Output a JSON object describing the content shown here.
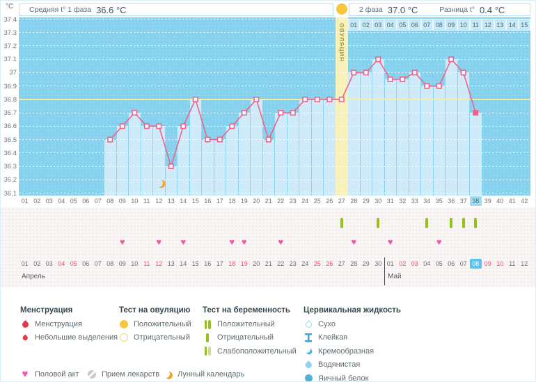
{
  "header": {
    "unit_label": "°C",
    "phase1_label": "Средняя t° 1 фаза",
    "phase1_value": "36.6 °C",
    "phase2_label": "2 фаза",
    "phase2_value": "37.0 °C",
    "diff_label": "Разница t°",
    "diff_value": "0.4 °C"
  },
  "chart_data": {
    "type": "line",
    "ylabel": "°C",
    "ylim": [
      36.1,
      37.4
    ],
    "yticks": [
      "37.4",
      "37.3",
      "37.2",
      "37.1",
      "37",
      "36.9",
      "36.8",
      "36.7",
      "36.6",
      "36.5",
      "36.4",
      "36.3",
      "36.2",
      "36.1"
    ],
    "grid": true,
    "total_days": 42,
    "days": [
      8,
      9,
      10,
      11,
      12,
      13,
      14,
      15,
      16,
      17,
      18,
      19,
      20,
      21,
      22,
      23,
      24,
      25,
      26,
      27,
      28,
      29,
      30,
      31,
      32,
      33,
      34,
      35,
      36,
      37,
      38
    ],
    "temperatures": [
      36.5,
      36.6,
      36.7,
      36.6,
      36.6,
      36.3,
      36.6,
      36.8,
      36.5,
      36.5,
      36.6,
      36.7,
      36.8,
      36.5,
      36.7,
      36.7,
      36.8,
      36.8,
      36.8,
      36.8,
      37.0,
      37.0,
      37.1,
      36.95,
      36.95,
      37.0,
      36.9,
      36.9,
      37.1,
      37.0,
      36.7
    ],
    "coverline": 36.8,
    "ovulation_day": 27,
    "ovulation_label": "ОВУЛЯЦИЯ",
    "phase2_days": [
      "01",
      "02",
      "03",
      "04",
      "05",
      "06",
      "07",
      "08",
      "09",
      "10",
      "11",
      "12",
      "13",
      "14",
      "15"
    ],
    "current_cycle_day": 38,
    "lunar_day": 12
  },
  "events": {
    "intercourse_days": [
      9,
      12,
      14,
      18,
      19,
      22,
      28,
      31,
      35
    ],
    "pregnancy_test_days": [
      27,
      30,
      34,
      36,
      37,
      38
    ]
  },
  "calendar": {
    "cycle_days": [
      "01",
      "02",
      "03",
      "04",
      "05",
      "06",
      "07",
      "08",
      "09",
      "10",
      "11",
      "12",
      "13",
      "14",
      "15",
      "16",
      "17",
      "18",
      "19",
      "20",
      "21",
      "22",
      "23",
      "24",
      "25",
      "26",
      "27",
      "28",
      "29",
      "30",
      "31",
      "32",
      "33",
      "34",
      "35",
      "36",
      "37",
      "38",
      "39",
      "40",
      "41",
      "42"
    ],
    "april_label": "Апрель",
    "may_label": "Май",
    "april_days": [
      "01",
      "02",
      "03",
      "04",
      "05",
      "06",
      "07",
      "08",
      "09",
      "10",
      "11",
      "12",
      "13",
      "14",
      "15",
      "16",
      "17",
      "18",
      "19",
      "20",
      "21",
      "22",
      "23",
      "24",
      "25",
      "26",
      "27",
      "28",
      "29",
      "30"
    ],
    "may_days": [
      "01",
      "02",
      "03",
      "04",
      "05",
      "06",
      "07",
      "08",
      "09",
      "10",
      "11",
      "12"
    ],
    "april_weekend": [
      4,
      5,
      11,
      12,
      18,
      19,
      25,
      26
    ],
    "may_weekend": [
      2,
      3,
      9,
      10
    ],
    "today_month": "may",
    "today_date": 8
  },
  "legend": {
    "menstruation": {
      "title": "Менструация",
      "items": [
        {
          "icon": "drop-large",
          "label": "Менструация"
        },
        {
          "icon": "drop-small",
          "label": "Небольшие выделения"
        }
      ]
    },
    "ovulation_test": {
      "title": "Тест на овуляцию",
      "items": [
        {
          "icon": "circle-filled",
          "label": "Положительный"
        },
        {
          "icon": "circle-outline",
          "label": "Отрицательный"
        }
      ]
    },
    "pregnancy_test": {
      "title": "Тест на беременность",
      "items": [
        {
          "icon": "bars-double",
          "label": "Положительный"
        },
        {
          "icon": "bar-single",
          "label": "Отрицательный"
        },
        {
          "icon": "bars-weak",
          "label": "Слабоположительный"
        }
      ]
    },
    "cervical_fluid": {
      "title": "Цервикальная жидкость",
      "items": [
        {
          "icon": "drop-dry",
          "label": "Сухо"
        },
        {
          "icon": "ibeam",
          "label": "Клейкая"
        },
        {
          "icon": "crescent",
          "label": "Кремообразная"
        },
        {
          "icon": "drop-water",
          "label": "Водянистая"
        },
        {
          "icon": "circle-solid",
          "label": "Яичный белок"
        }
      ]
    },
    "extra": [
      {
        "icon": "heart",
        "label": "Половой акт"
      },
      {
        "icon": "pill",
        "label": "Прием лекарств"
      },
      {
        "icon": "moon",
        "label": "Лунный календарь"
      }
    ]
  },
  "colors": {
    "chart_bg": "#85d1ee",
    "column_fill": "#cfeaf8",
    "line": "#f2608c",
    "coverline": "#f3efa0",
    "ovulation_band": "#f8f1bb",
    "heart": "#f655a3",
    "test_bar": "#94c11f",
    "test_bar_weak": "#cbde96",
    "weekend_red": "#f0506e",
    "current_day_bg": "#9edcf4",
    "today_bg": "#59c3ec",
    "menstruation_red": "#e73848",
    "ovulation_yellow": "#f8c63e",
    "cervical_blue": "#52b0e0",
    "lunar_orange": "#f5a02d"
  }
}
